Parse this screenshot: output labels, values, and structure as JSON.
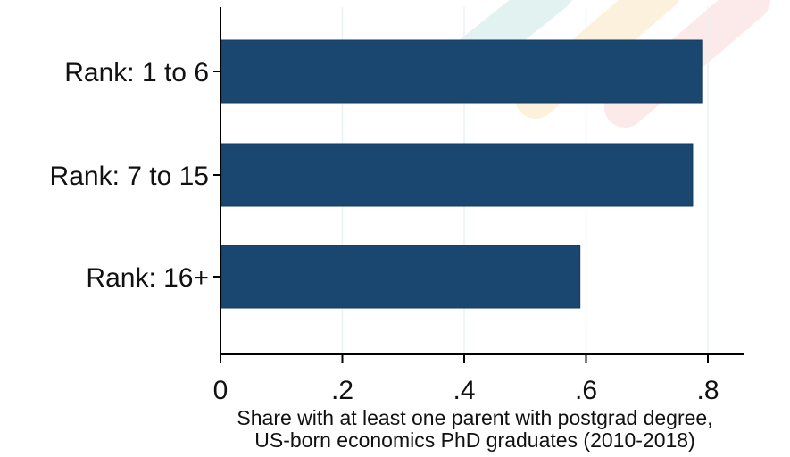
{
  "chart_data": {
    "type": "bar",
    "orientation": "horizontal",
    "categories": [
      "Rank: 1 to 6",
      "Rank: 7 to 15",
      "Rank: 16+"
    ],
    "values": [
      0.79,
      0.775,
      0.59
    ],
    "xlabel_lines": [
      "Share with at least one parent with postgrad degree,",
      "US-born economics PhD graduates (2010-2018)"
    ],
    "xticks": [
      0,
      0.2,
      0.4,
      0.6,
      0.8
    ],
    "xtick_labels": [
      "0",
      ".2",
      ".4",
      ".6",
      ".8"
    ],
    "xlim": [
      0,
      0.8
    ],
    "grid": "vertical",
    "colors": {
      "bar": "#1a476f",
      "gridline": "#eaf2f3",
      "axis": "#000000",
      "watermark": [
        "#7fc9c4",
        "#f6c36a",
        "#f0a3a0"
      ]
    }
  }
}
